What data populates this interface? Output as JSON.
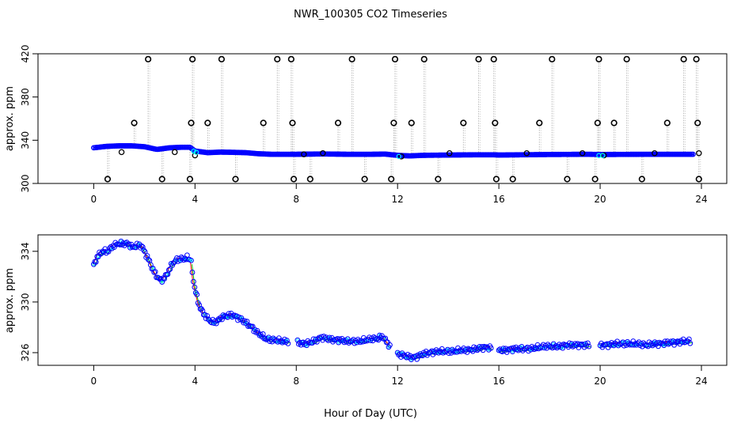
{
  "figure": {
    "title": "NWR_100305  CO2 Timeseries",
    "xlabel": "Hour of Day (UTC)"
  },
  "colors": {
    "raw_marker": "#000000",
    "connector": "#b8b8b8",
    "ring_outer": "#0000ff",
    "ring_inner": "#00ffff",
    "smooth_line": "#0000ff",
    "line_green": "#00cc00",
    "line_red": "#ff0000"
  },
  "chart_data": [
    {
      "type": "scatter",
      "id": "top",
      "title": "",
      "xlabel": "",
      "ylabel": "approx. ppm",
      "xlim": [
        -2.2,
        25
      ],
      "ylim": [
        300,
        420
      ],
      "xticks": [
        0,
        4,
        8,
        12,
        16,
        20,
        24
      ],
      "yticks": [
        300,
        340,
        380,
        420
      ],
      "ytick_labels": [
        "300",
        "340",
        "380",
        "420"
      ],
      "grid": false,
      "baseline": [
        [
          0,
          333
        ],
        [
          0.5,
          334.3
        ],
        [
          1,
          334.8
        ],
        [
          1.5,
          334.8
        ],
        [
          2,
          334
        ],
        [
          2.5,
          331.5
        ],
        [
          3,
          333
        ],
        [
          3.5,
          333.5
        ],
        [
          3.8,
          333.5
        ],
        [
          4,
          330
        ],
        [
          4.5,
          328.5
        ],
        [
          5,
          329
        ],
        [
          5.5,
          328.8
        ],
        [
          6,
          328.5
        ],
        [
          6.5,
          327.5
        ],
        [
          7,
          327
        ],
        [
          7.5,
          327
        ],
        [
          8,
          327
        ],
        [
          9,
          327.3
        ],
        [
          10,
          327
        ],
        [
          11,
          327
        ],
        [
          11.5,
          327.2
        ],
        [
          12,
          326
        ],
        [
          12.5,
          325.5
        ],
        [
          13,
          326
        ],
        [
          14,
          326.3
        ],
        [
          15,
          326.5
        ],
        [
          15.8,
          326.5
        ],
        [
          16,
          326.3
        ],
        [
          18,
          326.8
        ],
        [
          19.5,
          327
        ],
        [
          20,
          326.8
        ],
        [
          22,
          327
        ],
        [
          23.7,
          327
        ]
      ],
      "spikes_high": [
        2.15,
        3.9,
        5.05,
        7.25,
        7.8,
        10.2,
        11.9,
        13.05,
        15.2,
        15.8,
        18.1,
        19.95,
        21.05,
        23.3,
        23.8
      ],
      "spikes_mid": [
        1.6,
        3.85,
        4.5,
        6.7,
        7.85,
        9.65,
        11.85,
        12.55,
        14.6,
        15.85,
        17.6,
        19.9,
        20.55,
        22.65,
        23.85
      ],
      "spikes_low": [
        0.55,
        2.7,
        3.8,
        5.6,
        7.9,
        8.55,
        10.7,
        11.75,
        13.6,
        15.9,
        16.55,
        18.7,
        19.8,
        21.65,
        23.9
      ],
      "spike_values": {
        "high": 415,
        "mid": 356,
        "low": 304
      },
      "offs_points": [
        [
          1.1,
          329
        ],
        [
          3.2,
          329
        ],
        [
          4.0,
          326
        ],
        [
          8.3,
          327
        ],
        [
          9.05,
          328
        ],
        [
          12.15,
          325
        ],
        [
          14.05,
          328
        ],
        [
          17.1,
          328
        ],
        [
          19.3,
          328
        ],
        [
          20.15,
          326
        ],
        [
          22.15,
          328
        ],
        [
          23.9,
          328
        ]
      ]
    },
    {
      "type": "scatter",
      "id": "bottom",
      "title": "",
      "xlabel": "Hour of Day (UTC)",
      "ylabel": "approx. ppm",
      "xlim": [
        -2.2,
        25
      ],
      "ylim": [
        325,
        335.3
      ],
      "xticks": [
        0,
        4,
        8,
        12,
        16,
        20,
        24
      ],
      "yticks": [
        326,
        330,
        334
      ],
      "ytick_labels": [
        "326",
        "330",
        "334"
      ],
      "grid": false,
      "series": [
        {
          "name": "segment-1",
          "points": [
            [
              0,
              332.9
            ],
            [
              0.15,
              333.6
            ],
            [
              0.35,
              334.0
            ],
            [
              0.55,
              334.0
            ],
            [
              0.75,
              334.4
            ],
            [
              0.95,
              334.6
            ],
            [
              1.15,
              334.6
            ],
            [
              1.35,
              334.6
            ],
            [
              1.55,
              334.3
            ],
            [
              1.75,
              334.5
            ],
            [
              1.9,
              334.4
            ],
            [
              2.05,
              333.8
            ],
            [
              2.2,
              333.2
            ],
            [
              2.35,
              332.5
            ],
            [
              2.5,
              332.0
            ],
            [
              2.65,
              331.7
            ],
            [
              2.8,
              331.9
            ],
            [
              2.95,
              332.4
            ],
            [
              3.1,
              333.0
            ],
            [
              3.25,
              333.3
            ],
            [
              3.4,
              333.4
            ],
            [
              3.55,
              333.4
            ],
            [
              3.7,
              333.5
            ],
            [
              3.8,
              333.3
            ]
          ]
        },
        {
          "name": "segment-2",
          "points": [
            [
              3.85,
              333.1
            ],
            [
              3.95,
              331.5
            ],
            [
              4.05,
              330.6
            ],
            [
              4.15,
              329.8
            ],
            [
              4.3,
              329.2
            ],
            [
              4.45,
              328.8
            ],
            [
              4.6,
              328.5
            ],
            [
              4.75,
              328.4
            ],
            [
              4.9,
              328.5
            ],
            [
              5.05,
              328.8
            ],
            [
              5.25,
              328.9
            ],
            [
              5.45,
              329.0
            ],
            [
              5.65,
              328.8
            ],
            [
              5.85,
              328.6
            ],
            [
              6.05,
              328.3
            ],
            [
              6.25,
              328.0
            ],
            [
              6.45,
              327.6
            ],
            [
              6.6,
              327.4
            ],
            [
              6.8,
              327.1
            ],
            [
              7.0,
              327.0
            ],
            [
              7.2,
              327.0
            ],
            [
              7.45,
              326.9
            ],
            [
              7.7,
              326.9
            ]
          ]
        },
        {
          "name": "segment-3",
          "points": [
            [
              8.05,
              326.8
            ],
            [
              8.3,
              326.7
            ],
            [
              8.55,
              326.8
            ],
            [
              8.8,
              327.0
            ],
            [
              9.0,
              327.2
            ],
            [
              9.25,
              327.1
            ],
            [
              9.5,
              327.0
            ],
            [
              9.75,
              327.0
            ],
            [
              10.0,
              326.9
            ],
            [
              10.25,
              326.9
            ],
            [
              10.5,
              326.9
            ],
            [
              10.75,
              327.0
            ],
            [
              11.0,
              327.1
            ],
            [
              11.2,
              327.1
            ],
            [
              11.4,
              327.3
            ],
            [
              11.55,
              326.9
            ],
            [
              11.7,
              326.5
            ]
          ]
        },
        {
          "name": "segment-4",
          "points": [
            [
              12.0,
              325.9
            ],
            [
              12.2,
              325.8
            ],
            [
              12.4,
              325.7
            ],
            [
              12.6,
              325.6
            ],
            [
              12.8,
              325.7
            ],
            [
              13.0,
              325.9
            ],
            [
              13.3,
              326.0
            ],
            [
              13.6,
              326.1
            ],
            [
              13.9,
              326.1
            ],
            [
              14.2,
              326.1
            ],
            [
              14.5,
              326.2
            ],
            [
              14.8,
              326.2
            ],
            [
              15.1,
              326.3
            ],
            [
              15.4,
              326.4
            ],
            [
              15.7,
              326.4
            ]
          ]
        },
        {
          "name": "segment-5",
          "points": [
            [
              16.0,
              326.2
            ],
            [
              16.3,
              326.2
            ],
            [
              16.6,
              326.3
            ],
            [
              16.9,
              326.3
            ],
            [
              17.2,
              326.3
            ],
            [
              17.5,
              326.4
            ],
            [
              17.8,
              326.5
            ],
            [
              18.1,
              326.5
            ],
            [
              18.4,
              326.5
            ],
            [
              18.7,
              326.6
            ],
            [
              19.0,
              326.6
            ],
            [
              19.3,
              326.6
            ],
            [
              19.6,
              326.6
            ]
          ]
        },
        {
          "name": "segment-6",
          "points": [
            [
              20.0,
              326.6
            ],
            [
              20.3,
              326.6
            ],
            [
              20.6,
              326.7
            ],
            [
              20.9,
              326.7
            ],
            [
              21.2,
              326.7
            ],
            [
              21.5,
              326.7
            ],
            [
              21.8,
              326.6
            ],
            [
              22.1,
              326.7
            ],
            [
              22.4,
              326.7
            ],
            [
              22.7,
              326.8
            ],
            [
              23.0,
              326.8
            ],
            [
              23.3,
              326.9
            ],
            [
              23.6,
              326.9
            ]
          ]
        }
      ]
    }
  ]
}
